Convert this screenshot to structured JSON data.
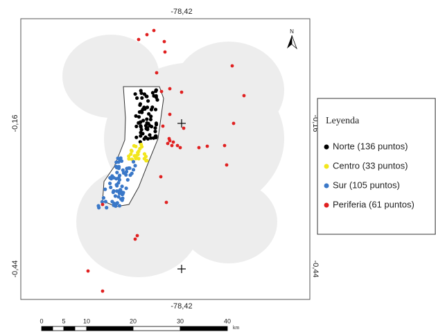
{
  "map": {
    "top_label": "-78,42",
    "bottom_label": "-78,42",
    "left_labels": [
      "-0,16",
      "-0,44"
    ],
    "right_labels": [
      "-0,16",
      "-0,44"
    ],
    "north": "N",
    "legend": {
      "title": "Leyenda",
      "items": [
        {
          "label": "Norte (136 puntos)",
          "color": "#000000"
        },
        {
          "label": "Centro  (33 puntos)",
          "color": "#f2e61c"
        },
        {
          "label": "Sur (105 puntos)",
          "color": "#3a78c8"
        },
        {
          "label": "Periferia (61 puntos)",
          "color": "#e02020"
        }
      ]
    },
    "scale_bar": {
      "labels": [
        "0",
        "5",
        "10",
        "20",
        "30",
        "40"
      ],
      "unit": "km"
    }
  }
}
